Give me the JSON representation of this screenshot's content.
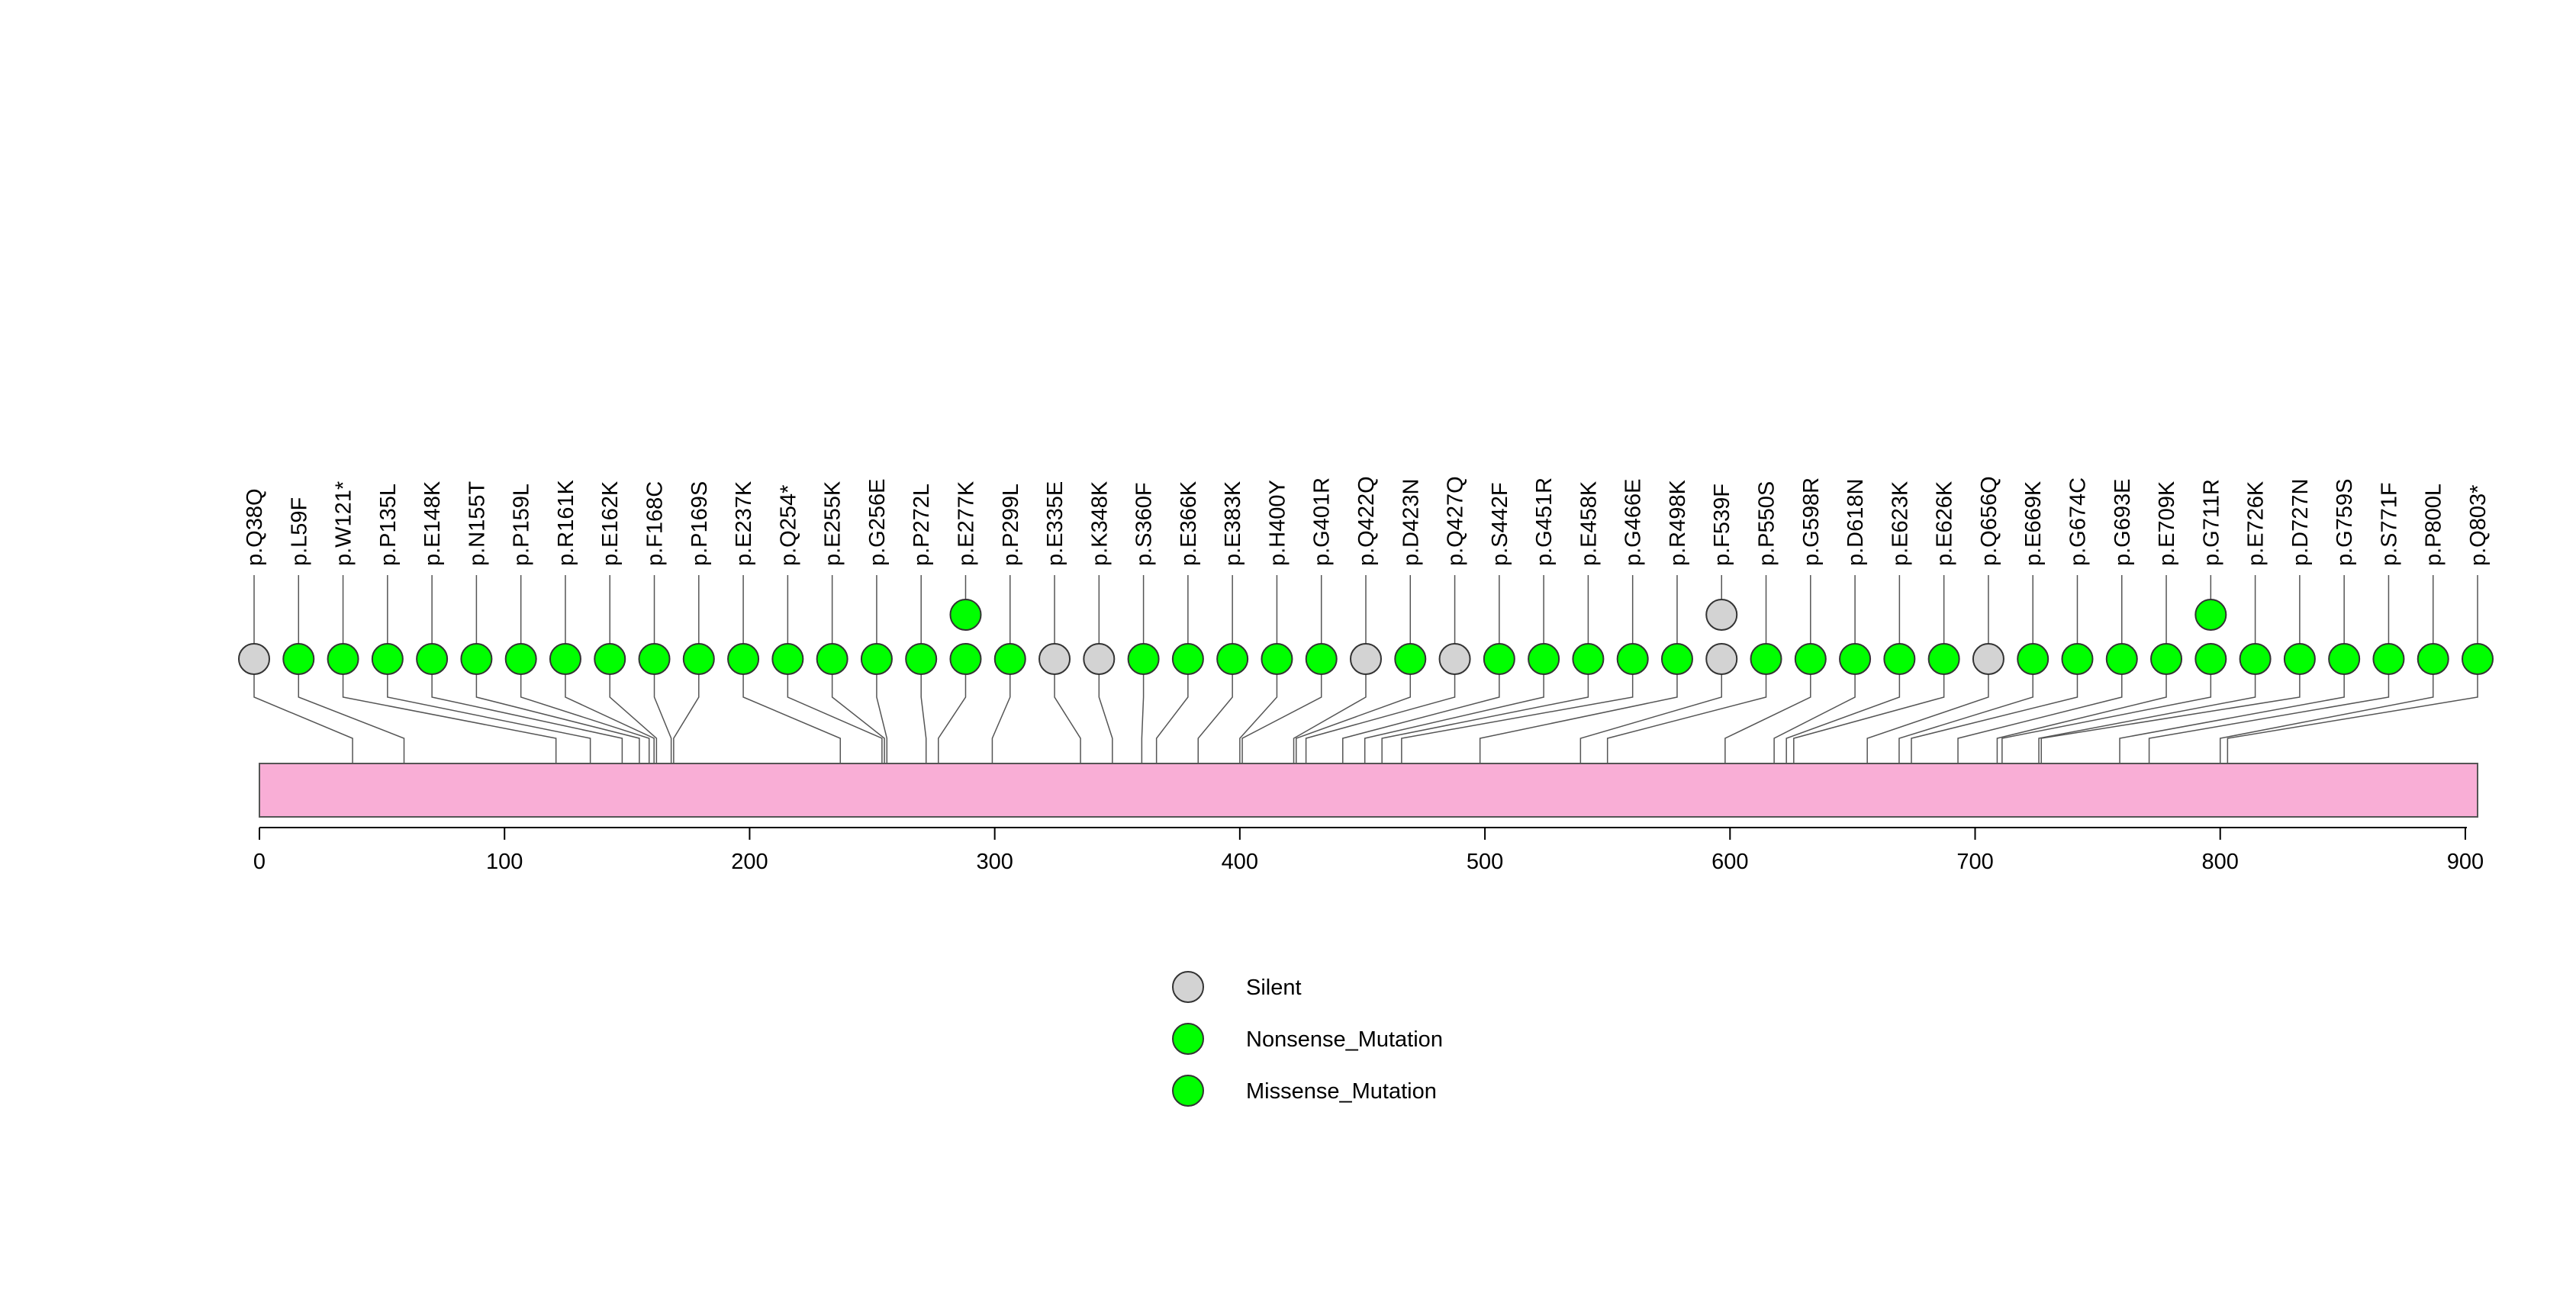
{
  "chart_data": {
    "type": "lollipop",
    "title": "",
    "xlabel": "",
    "ylabel": "",
    "xlim": [
      0,
      905
    ],
    "ticks": [
      "0",
      "100",
      "200",
      "300",
      "400",
      "500",
      "600",
      "700",
      "800",
      "900"
    ],
    "colors": {
      "protein_bar": "#F9AED6",
      "silent": "#D3D3D3",
      "nonsense": "#00FF00",
      "missense": "#00FF00",
      "stroke": "#333333",
      "connector": "#555555"
    },
    "legend": [
      {
        "label": "Silent",
        "type": "silent"
      },
      {
        "label": "Nonsense_Mutation",
        "type": "nonsense"
      },
      {
        "label": "Missense_Mutation",
        "type": "missense"
      }
    ],
    "mutations": [
      {
        "label": "p.Q38Q",
        "position": 38,
        "types": [
          "silent"
        ]
      },
      {
        "label": "p.L59F",
        "position": 59,
        "types": [
          "missense"
        ]
      },
      {
        "label": "p.W121*",
        "position": 121,
        "types": [
          "nonsense"
        ]
      },
      {
        "label": "p.P135L",
        "position": 135,
        "types": [
          "missense"
        ]
      },
      {
        "label": "p.E148K",
        "position": 148,
        "types": [
          "missense"
        ]
      },
      {
        "label": "p.N155T",
        "position": 155,
        "types": [
          "missense"
        ]
      },
      {
        "label": "p.P159L",
        "position": 159,
        "types": [
          "missense"
        ]
      },
      {
        "label": "p.R161K",
        "position": 161,
        "types": [
          "missense"
        ]
      },
      {
        "label": "p.E162K",
        "position": 162,
        "types": [
          "missense"
        ]
      },
      {
        "label": "p.F168C",
        "position": 168,
        "types": [
          "missense"
        ]
      },
      {
        "label": "p.P169S",
        "position": 169,
        "types": [
          "missense"
        ]
      },
      {
        "label": "p.E237K",
        "position": 237,
        "types": [
          "missense"
        ]
      },
      {
        "label": "p.Q254*",
        "position": 254,
        "types": [
          "nonsense"
        ]
      },
      {
        "label": "p.E255K",
        "position": 255,
        "types": [
          "missense"
        ]
      },
      {
        "label": "p.G256E",
        "position": 256,
        "types": [
          "missense"
        ]
      },
      {
        "label": "p.P272L",
        "position": 272,
        "types": [
          "missense"
        ]
      },
      {
        "label": "p.E277K",
        "position": 277,
        "types": [
          "missense",
          "missense"
        ]
      },
      {
        "label": "p.P299L",
        "position": 299,
        "types": [
          "missense"
        ]
      },
      {
        "label": "p.E335E",
        "position": 335,
        "types": [
          "silent"
        ]
      },
      {
        "label": "p.K348K",
        "position": 348,
        "types": [
          "silent"
        ]
      },
      {
        "label": "p.S360F",
        "position": 360,
        "types": [
          "missense"
        ]
      },
      {
        "label": "p.E366K",
        "position": 366,
        "types": [
          "missense"
        ]
      },
      {
        "label": "p.E383K",
        "position": 383,
        "types": [
          "missense"
        ]
      },
      {
        "label": "p.H400Y",
        "position": 400,
        "types": [
          "missense"
        ]
      },
      {
        "label": "p.G401R",
        "position": 401,
        "types": [
          "missense"
        ]
      },
      {
        "label": "p.Q422Q",
        "position": 422,
        "types": [
          "silent"
        ]
      },
      {
        "label": "p.D423N",
        "position": 423,
        "types": [
          "missense"
        ]
      },
      {
        "label": "p.Q427Q",
        "position": 427,
        "types": [
          "silent"
        ]
      },
      {
        "label": "p.S442F",
        "position": 442,
        "types": [
          "missense"
        ]
      },
      {
        "label": "p.G451R",
        "position": 451,
        "types": [
          "missense"
        ]
      },
      {
        "label": "p.E458K",
        "position": 458,
        "types": [
          "missense"
        ]
      },
      {
        "label": "p.G466E",
        "position": 466,
        "types": [
          "missense"
        ]
      },
      {
        "label": "p.R498K",
        "position": 498,
        "types": [
          "missense"
        ]
      },
      {
        "label": "p.F539F",
        "position": 539,
        "types": [
          "silent",
          "silent"
        ]
      },
      {
        "label": "p.P550S",
        "position": 550,
        "types": [
          "missense"
        ]
      },
      {
        "label": "p.G598R",
        "position": 598,
        "types": [
          "missense"
        ]
      },
      {
        "label": "p.D618N",
        "position": 618,
        "types": [
          "missense"
        ]
      },
      {
        "label": "p.E623K",
        "position": 623,
        "types": [
          "missense"
        ]
      },
      {
        "label": "p.E626K",
        "position": 626,
        "types": [
          "missense"
        ]
      },
      {
        "label": "p.Q656Q",
        "position": 656,
        "types": [
          "silent"
        ]
      },
      {
        "label": "p.E669K",
        "position": 669,
        "types": [
          "missense"
        ]
      },
      {
        "label": "p.G674C",
        "position": 674,
        "types": [
          "missense"
        ]
      },
      {
        "label": "p.G693E",
        "position": 693,
        "types": [
          "missense"
        ]
      },
      {
        "label": "p.E709K",
        "position": 709,
        "types": [
          "missense"
        ]
      },
      {
        "label": "p.G711R",
        "position": 711,
        "types": [
          "missense",
          "missense"
        ]
      },
      {
        "label": "p.E726K",
        "position": 726,
        "types": [
          "missense"
        ]
      },
      {
        "label": "p.D727N",
        "position": 727,
        "types": [
          "missense"
        ]
      },
      {
        "label": "p.G759S",
        "position": 759,
        "types": [
          "missense"
        ]
      },
      {
        "label": "p.S771F",
        "position": 771,
        "types": [
          "missense"
        ]
      },
      {
        "label": "p.P800L",
        "position": 800,
        "types": [
          "missense"
        ]
      },
      {
        "label": "p.Q803*",
        "position": 803,
        "types": [
          "nonsense"
        ]
      }
    ]
  }
}
